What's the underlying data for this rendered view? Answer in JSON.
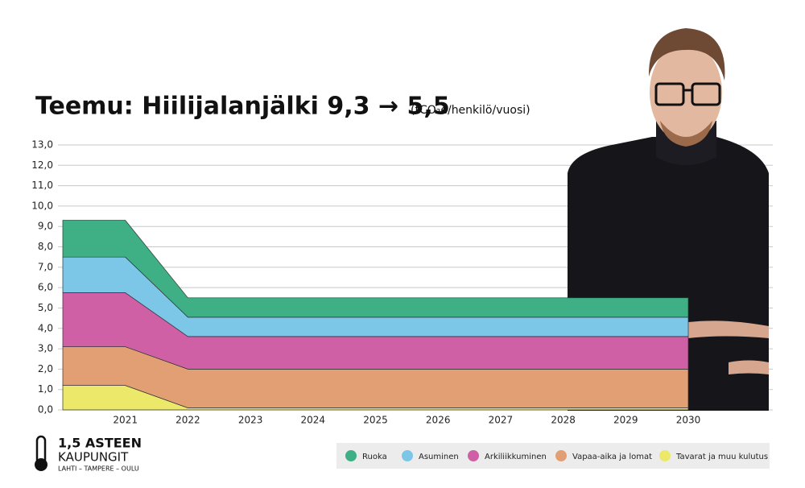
{
  "chart_data": {
    "type": "stacked-area",
    "title": "Teemu: Hiilijalanjälki 9,3 → 5,5",
    "subtitle": "(tCO₂e/henkilö/vuosi)",
    "categories": [
      null,
      "2021",
      "2022",
      "2023",
      "2024",
      "2025",
      "2026",
      "2027",
      "2028",
      "2029",
      "2030"
    ],
    "series": [
      {
        "name": "Ruoka",
        "color": "#3fb085",
        "values": [
          1.8,
          1.8,
          0.95,
          0.95,
          0.95,
          0.95,
          0.95,
          0.95,
          0.95,
          0.95,
          0.95
        ]
      },
      {
        "name": "Asuminen",
        "color": "#7cc6e8",
        "values": [
          1.75,
          1.75,
          0.95,
          0.95,
          0.95,
          0.95,
          0.95,
          0.95,
          0.95,
          0.95,
          0.95
        ]
      },
      {
        "name": "Arkiliikkuminen",
        "color": "#d060a6",
        "values": [
          2.65,
          2.65,
          1.6,
          1.6,
          1.6,
          1.6,
          1.6,
          1.6,
          1.6,
          1.6,
          1.6
        ]
      },
      {
        "name": "Vapaa-aika ja lomat",
        "color": "#e39f74",
        "values": [
          1.9,
          1.9,
          1.9,
          1.9,
          1.9,
          1.9,
          1.9,
          1.9,
          1.9,
          1.9,
          1.9
        ]
      },
      {
        "name": "Tavarat ja muu kulutus",
        "color": "#ece96a",
        "values": [
          1.2,
          1.2,
          0.1,
          0.1,
          0.1,
          0.1,
          0.1,
          0.1,
          0.1,
          0.1,
          0.1
        ]
      }
    ],
    "ylim": [
      0,
      13
    ],
    "yticks": [
      {
        "value": 0,
        "label": "0,0"
      },
      {
        "value": 1,
        "label": "1,0"
      },
      {
        "value": 2,
        "label": "2,0"
      },
      {
        "value": 3,
        "label": "3,0"
      },
      {
        "value": 4,
        "label": "4,0"
      },
      {
        "value": 5,
        "label": "5,0"
      },
      {
        "value": 6,
        "label": "6,0"
      },
      {
        "value": 7,
        "label": "7,0"
      },
      {
        "value": 8,
        "label": "8,0"
      },
      {
        "value": 9,
        "label": "9,0"
      },
      {
        "value": 10,
        "label": "10,0"
      },
      {
        "value": 11,
        "label": "11,0"
      },
      {
        "value": 12,
        "label": "12,0"
      },
      {
        "value": 13,
        "label": "13,0"
      }
    ],
    "grid": true
  },
  "logo": {
    "line1": "1,5 ASTEEN",
    "line2": "KAUPUNGIT",
    "line3": "LAHTI – TAMPERE – OULU"
  }
}
